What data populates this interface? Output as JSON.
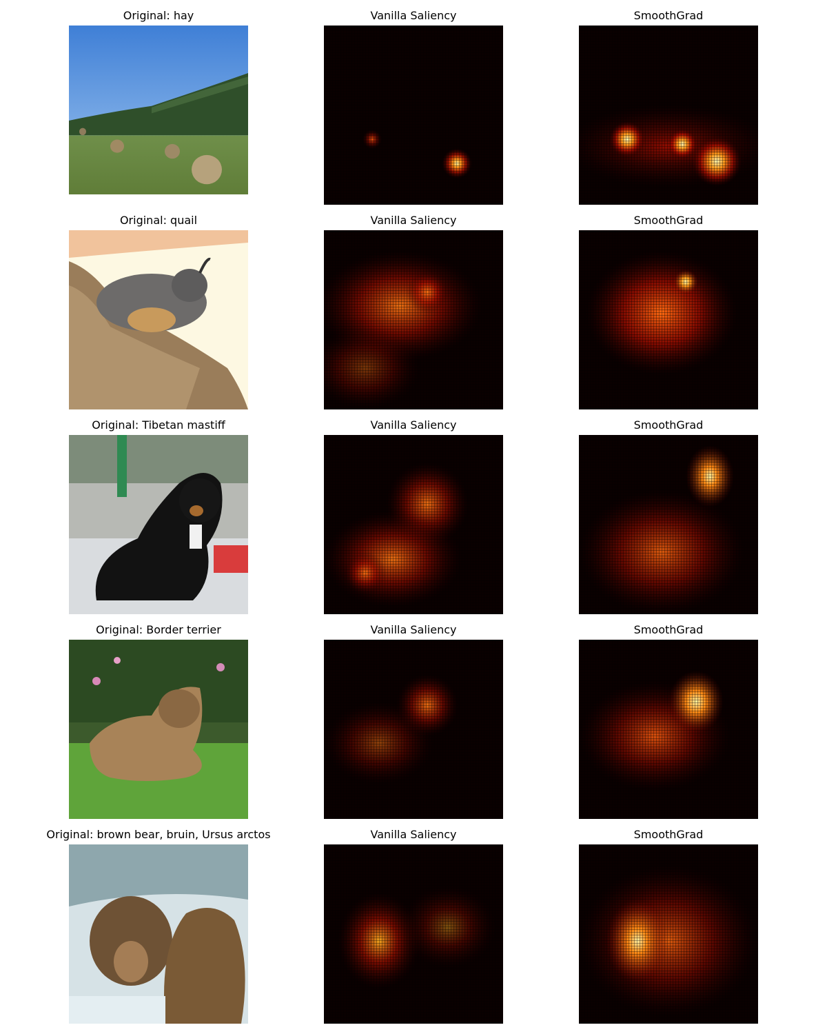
{
  "rows": [
    {
      "original_title": "Original: hay",
      "vanilla_title": "Vanilla Saliency",
      "smoothgrad_title": "SmoothGrad"
    },
    {
      "original_title": "Original: quail",
      "vanilla_title": "Vanilla Saliency",
      "smoothgrad_title": "SmoothGrad"
    },
    {
      "original_title": "Original: Tibetan mastiff",
      "vanilla_title": "Vanilla Saliency",
      "smoothgrad_title": "SmoothGrad"
    },
    {
      "original_title": "Original: Border terrier",
      "vanilla_title": "Vanilla Saliency",
      "smoothgrad_title": "SmoothGrad"
    },
    {
      "original_title": "Original: brown bear, bruin, Ursus arctos",
      "vanilla_title": "Vanilla Saliency",
      "smoothgrad_title": "SmoothGrad"
    }
  ],
  "colormap": "hot",
  "heatmap_background": "#0a0000"
}
